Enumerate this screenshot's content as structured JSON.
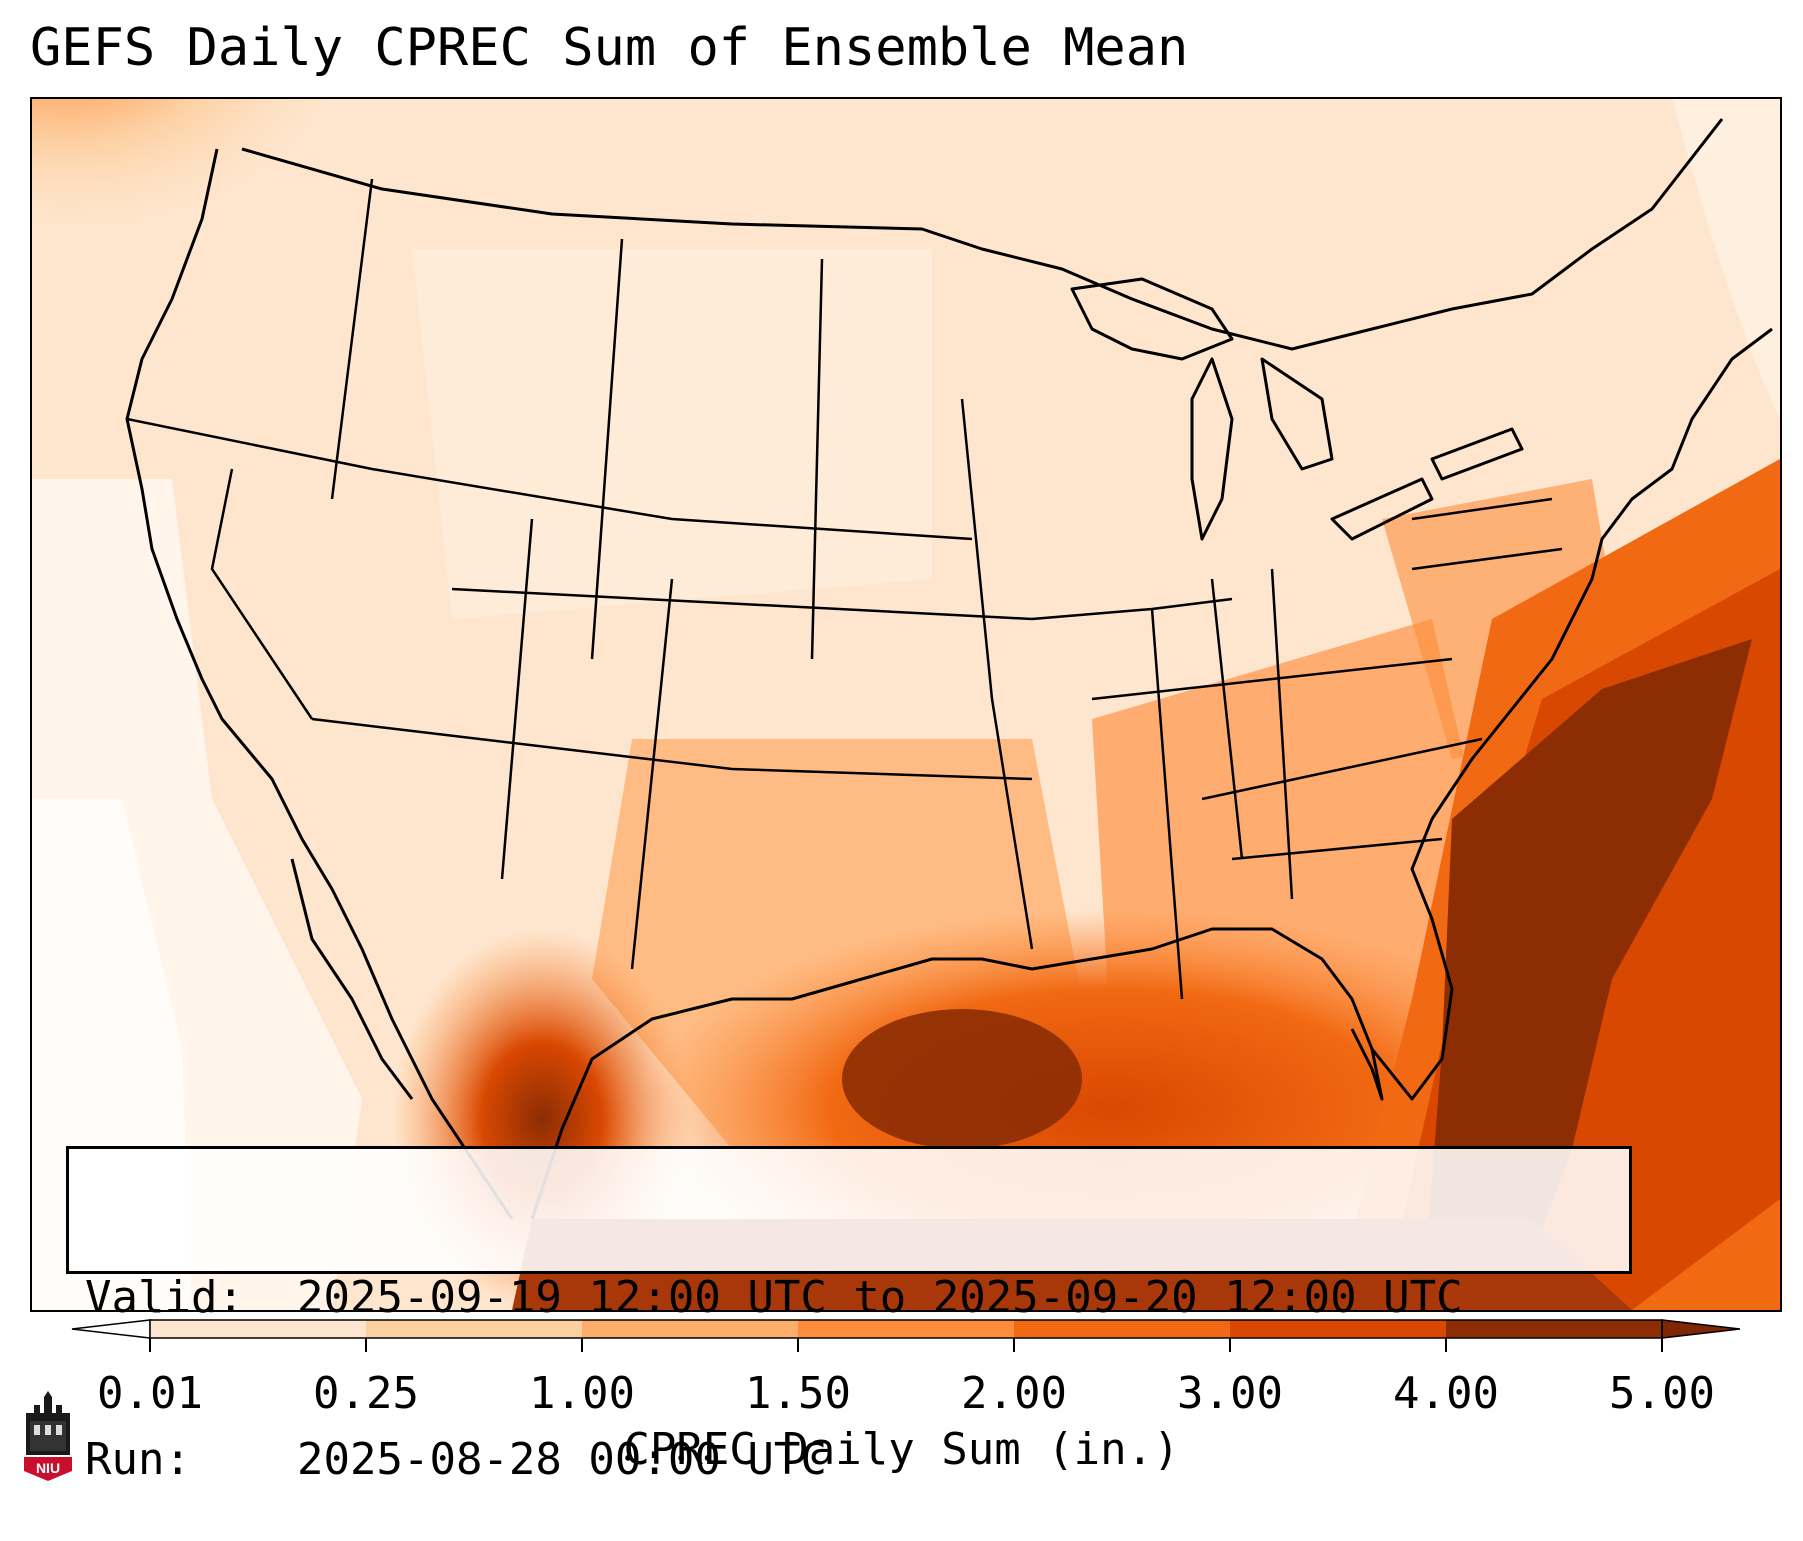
{
  "title": "GEFS Daily CPREC Sum of Ensemble Mean",
  "info": {
    "valid_label": "Valid:",
    "valid_value": "2025-09-19 12:00 UTC to 2025-09-20 12:00 UTC",
    "run_label": "Run:",
    "run_value": "2025-08-28 00:00 UTC"
  },
  "colorbar": {
    "title": "CPREC Daily Sum (in.)",
    "ticks": [
      "0.01",
      "0.25",
      "1.00",
      "1.50",
      "2.00",
      "3.00",
      "4.00",
      "5.00"
    ],
    "colors": [
      "#fff5eb",
      "#fee6ce",
      "#fdd0a2",
      "#fdae6b",
      "#fd8d3c",
      "#f16913",
      "#d94801",
      "#8c2d04"
    ],
    "under_color": "#ffffff",
    "over_color": "#7f2704"
  },
  "logo": {
    "text": "NIU",
    "icon": "niu-castle-icon"
  }
}
